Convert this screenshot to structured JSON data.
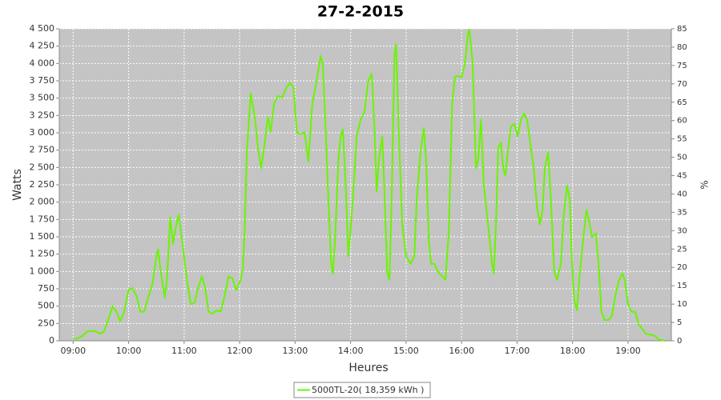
{
  "chart_data": {
    "type": "line",
    "title": "27-2-2015",
    "xlabel": "Heures",
    "ylabel": "Watts",
    "y2label": "%",
    "x": [
      9.0,
      9.13,
      9.27,
      9.39,
      9.49,
      9.56,
      9.63,
      9.71,
      9.78,
      9.85,
      9.92,
      10.0,
      10.07,
      10.14,
      10.21,
      10.28,
      10.36,
      10.43,
      10.5,
      10.53,
      10.57,
      10.65,
      10.69,
      10.75,
      10.8,
      10.86,
      10.9,
      10.98,
      11.05,
      11.12,
      11.19,
      11.25,
      11.32,
      11.38,
      11.44,
      11.51,
      11.58,
      11.66,
      11.73,
      11.8,
      11.87,
      11.94,
      12.02,
      12.06,
      12.09,
      12.13,
      12.2,
      12.28,
      12.33,
      12.39,
      12.45,
      12.51,
      12.56,
      12.62,
      12.69,
      12.77,
      12.84,
      12.91,
      12.97,
      13.03,
      13.1,
      13.17,
      13.24,
      13.31,
      13.39,
      13.46,
      13.5,
      13.55,
      13.6,
      13.65,
      13.68,
      13.72,
      13.78,
      13.82,
      13.86,
      13.91,
      13.96,
      14.04,
      14.11,
      14.18,
      14.25,
      14.32,
      14.38,
      14.43,
      14.47,
      14.51,
      14.57,
      14.61,
      14.66,
      14.7,
      14.74,
      14.79,
      14.82,
      14.86,
      14.93,
      15.0,
      15.08,
      15.15,
      15.19,
      15.26,
      15.32,
      15.36,
      15.41,
      15.45,
      15.51,
      15.58,
      15.65,
      15.71,
      15.77,
      15.83,
      15.88,
      15.94,
      16.0,
      16.06,
      16.11,
      16.14,
      16.2,
      16.26,
      16.3,
      16.35,
      16.4,
      16.46,
      16.5,
      16.55,
      16.58,
      16.62,
      16.66,
      16.71,
      16.75,
      16.79,
      16.84,
      16.89,
      16.95,
      17.01,
      17.07,
      17.12,
      17.18,
      17.24,
      17.3,
      17.36,
      17.41,
      17.46,
      17.5,
      17.56,
      17.61,
      17.67,
      17.72,
      17.79,
      17.84,
      17.9,
      17.95,
      17.99,
      18.03,
      18.08,
      18.12,
      18.19,
      18.25,
      18.31,
      18.35,
      18.42,
      18.47,
      18.52,
      18.58,
      18.65,
      18.71,
      18.77,
      18.84,
      18.9,
      18.94,
      19.0,
      19.06,
      19.13,
      19.19,
      19.25,
      19.32,
      19.4,
      19.49,
      19.55,
      19.66
    ],
    "series": [
      {
        "name": "5000TL-20( 18,359 kWh )",
        "color": "#6af500",
        "values": [
          20,
          50,
          140,
          140,
          100,
          140,
          300,
          500,
          420,
          280,
          420,
          740,
          760,
          650,
          420,
          420,
          650,
          820,
          1220,
          1320,
          1050,
          620,
          880,
          1780,
          1400,
          1680,
          1820,
          1340,
          880,
          530,
          550,
          760,
          930,
          760,
          420,
          390,
          440,
          420,
          650,
          930,
          900,
          730,
          880,
          1050,
          1570,
          2720,
          3570,
          3190,
          2780,
          2490,
          2840,
          3230,
          3010,
          3420,
          3530,
          3510,
          3650,
          3720,
          3650,
          3010,
          2980,
          3010,
          2580,
          3420,
          3760,
          4110,
          3990,
          3070,
          2030,
          1110,
          970,
          1450,
          2610,
          2950,
          3050,
          2260,
          1220,
          2030,
          2950,
          3190,
          3300,
          3760,
          3850,
          3070,
          2150,
          2610,
          2950,
          2150,
          990,
          880,
          2030,
          4110,
          4280,
          3190,
          1680,
          1220,
          1110,
          1220,
          2030,
          2720,
          3070,
          2610,
          1450,
          1110,
          1110,
          990,
          930,
          880,
          1570,
          3420,
          3810,
          3820,
          3800,
          3990,
          4400,
          4490,
          3990,
          2490,
          2610,
          3190,
          2260,
          1800,
          1510,
          1110,
          970,
          1680,
          2780,
          2860,
          2490,
          2380,
          2780,
          3090,
          3130,
          2950,
          3190,
          3280,
          3190,
          2840,
          2490,
          1920,
          1680,
          1890,
          2490,
          2720,
          2030,
          990,
          880,
          1110,
          1800,
          2240,
          2030,
          1110,
          590,
          440,
          880,
          1450,
          1890,
          1680,
          1500,
          1550,
          1110,
          420,
          300,
          300,
          360,
          650,
          880,
          970,
          880,
          530,
          420,
          420,
          240,
          180,
          100,
          90,
          70,
          20,
          0
        ]
      }
    ],
    "xlim": [
      8.75,
      19.78
    ],
    "xticks": [
      {
        "value": 9,
        "label": "09:00"
      },
      {
        "value": 10,
        "label": "10:00"
      },
      {
        "value": 11,
        "label": "11:00"
      },
      {
        "value": 12,
        "label": "12:00"
      },
      {
        "value": 13,
        "label": "13:00"
      },
      {
        "value": 14,
        "label": "14:00"
      },
      {
        "value": 15,
        "label": "15:00"
      },
      {
        "value": 16,
        "label": "16:00"
      },
      {
        "value": 17,
        "label": "17:00"
      },
      {
        "value": 18,
        "label": "18:00"
      },
      {
        "value": 19,
        "label": "19:00"
      }
    ],
    "ylim": [
      0,
      4500
    ],
    "yticks": [
      0,
      250,
      500,
      750,
      {
        "value": 1000,
        "label": "1 000"
      },
      {
        "value": 1250,
        "label": "1 250"
      },
      {
        "value": 1500,
        "label": "1 500"
      },
      {
        "value": 1750,
        "label": "1 750"
      },
      {
        "value": 2000,
        "label": "2 000"
      },
      {
        "value": 2250,
        "label": "2 250"
      },
      {
        "value": 2500,
        "label": "2 500"
      },
      {
        "value": 2750,
        "label": "2 750"
      },
      {
        "value": 3000,
        "label": "3 000"
      },
      {
        "value": 3250,
        "label": "3 250"
      },
      {
        "value": 3500,
        "label": "3 500"
      },
      {
        "value": 3750,
        "label": "3 750"
      },
      {
        "value": 4000,
        "label": "4 000"
      },
      {
        "value": 4250,
        "label": "4 250"
      },
      {
        "value": 4500,
        "label": "4 500"
      }
    ],
    "y2lim": [
      0,
      85
    ],
    "y2ticks": [
      0,
      5,
      10,
      15,
      20,
      25,
      30,
      35,
      40,
      45,
      50,
      55,
      60,
      65,
      70,
      75,
      80,
      85
    ],
    "grid": true,
    "legend": "bottom"
  }
}
